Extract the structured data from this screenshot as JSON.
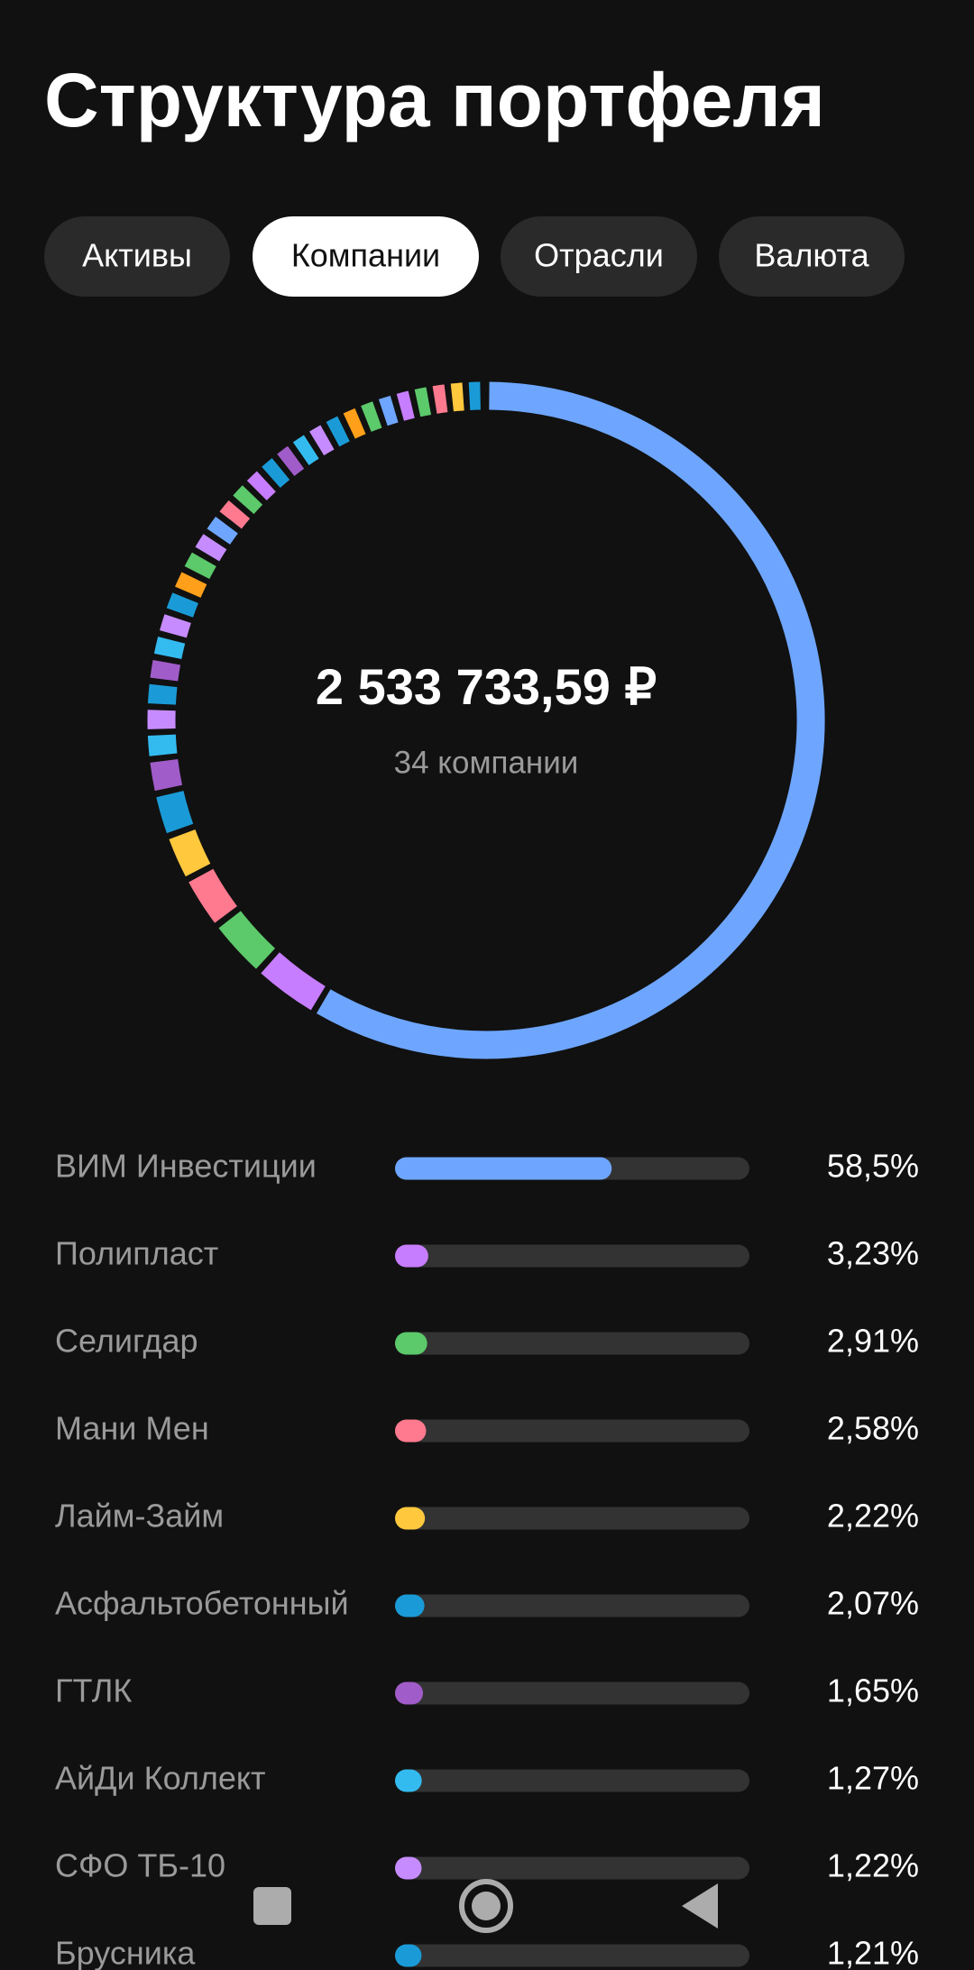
{
  "header": {
    "title": "Структура портфеля"
  },
  "tabs": [
    {
      "label": "Активы",
      "selected": false
    },
    {
      "label": "Компании",
      "selected": true
    },
    {
      "label": "Отрасли",
      "selected": false
    },
    {
      "label": "Валюта",
      "selected": false
    }
  ],
  "summary": {
    "total": "2 533 733,59 ₽",
    "count": "34 компании"
  },
  "list": {
    "items": [
      {
        "name": "ВИМ Инвестиции",
        "value": 58.5,
        "value_label": "58,5%",
        "color": "#6ea6ff"
      },
      {
        "name": "Полипласт",
        "value": 3.23,
        "value_label": "3,23%",
        "color": "#c77dff"
      },
      {
        "name": "Селигдар",
        "value": 2.91,
        "value_label": "2,91%",
        "color": "#5cc96b"
      },
      {
        "name": "Мани Мен",
        "value": 2.58,
        "value_label": "2,58%",
        "color": "#ff7a8f"
      },
      {
        "name": "Лайм-Займ",
        "value": 2.22,
        "value_label": "2,22%",
        "color": "#ffc83d"
      },
      {
        "name": "Асфальтобетонный",
        "value": 2.07,
        "value_label": "2,07%",
        "color": "#1a9bd7"
      },
      {
        "name": "ГТЛК",
        "value": 1.65,
        "value_label": "1,65%",
        "color": "#a05cc8"
      },
      {
        "name": "АйДи Коллект",
        "value": 1.27,
        "value_label": "1,27%",
        "color": "#33bbf0"
      },
      {
        "name": "СФО ТБ-10",
        "value": 1.22,
        "value_label": "1,22%",
        "color": "#c68cff"
      },
      {
        "name": "Брусника",
        "value": 1.21,
        "value_label": "1,21%",
        "color": "#1a9bd7"
      }
    ]
  },
  "donut": {
    "other_segments": [
      {
        "value": 1.15,
        "color": "#a05cc8"
      },
      {
        "value": 1.12,
        "color": "#33bbf0"
      },
      {
        "value": 1.1,
        "color": "#c68cff"
      },
      {
        "value": 1.08,
        "color": "#1a9bd7"
      },
      {
        "value": 1.06,
        "color": "#ff9f1a"
      },
      {
        "value": 1.04,
        "color": "#5cc96b"
      },
      {
        "value": 1.02,
        "color": "#c68cff"
      },
      {
        "value": 1.0,
        "color": "#6ea6ff"
      },
      {
        "value": 0.98,
        "color": "#ff7a8f"
      },
      {
        "value": 0.96,
        "color": "#5cc96b"
      },
      {
        "value": 0.95,
        "color": "#c77dff"
      },
      {
        "value": 0.94,
        "color": "#1a9bd7"
      },
      {
        "value": 0.93,
        "color": "#a05cc8"
      },
      {
        "value": 0.92,
        "color": "#33bbf0"
      },
      {
        "value": 0.91,
        "color": "#c68cff"
      },
      {
        "value": 0.9,
        "color": "#1a9bd7"
      },
      {
        "value": 0.9,
        "color": "#ff9f1a"
      },
      {
        "value": 0.89,
        "color": "#5cc96b"
      },
      {
        "value": 0.88,
        "color": "#6ea6ff"
      },
      {
        "value": 0.87,
        "color": "#c77dff"
      },
      {
        "value": 0.86,
        "color": "#5cc96b"
      },
      {
        "value": 0.86,
        "color": "#ff7a8f"
      },
      {
        "value": 0.85,
        "color": "#ffc83d"
      },
      {
        "value": 0.84,
        "color": "#1a9bd7"
      }
    ]
  }
}
